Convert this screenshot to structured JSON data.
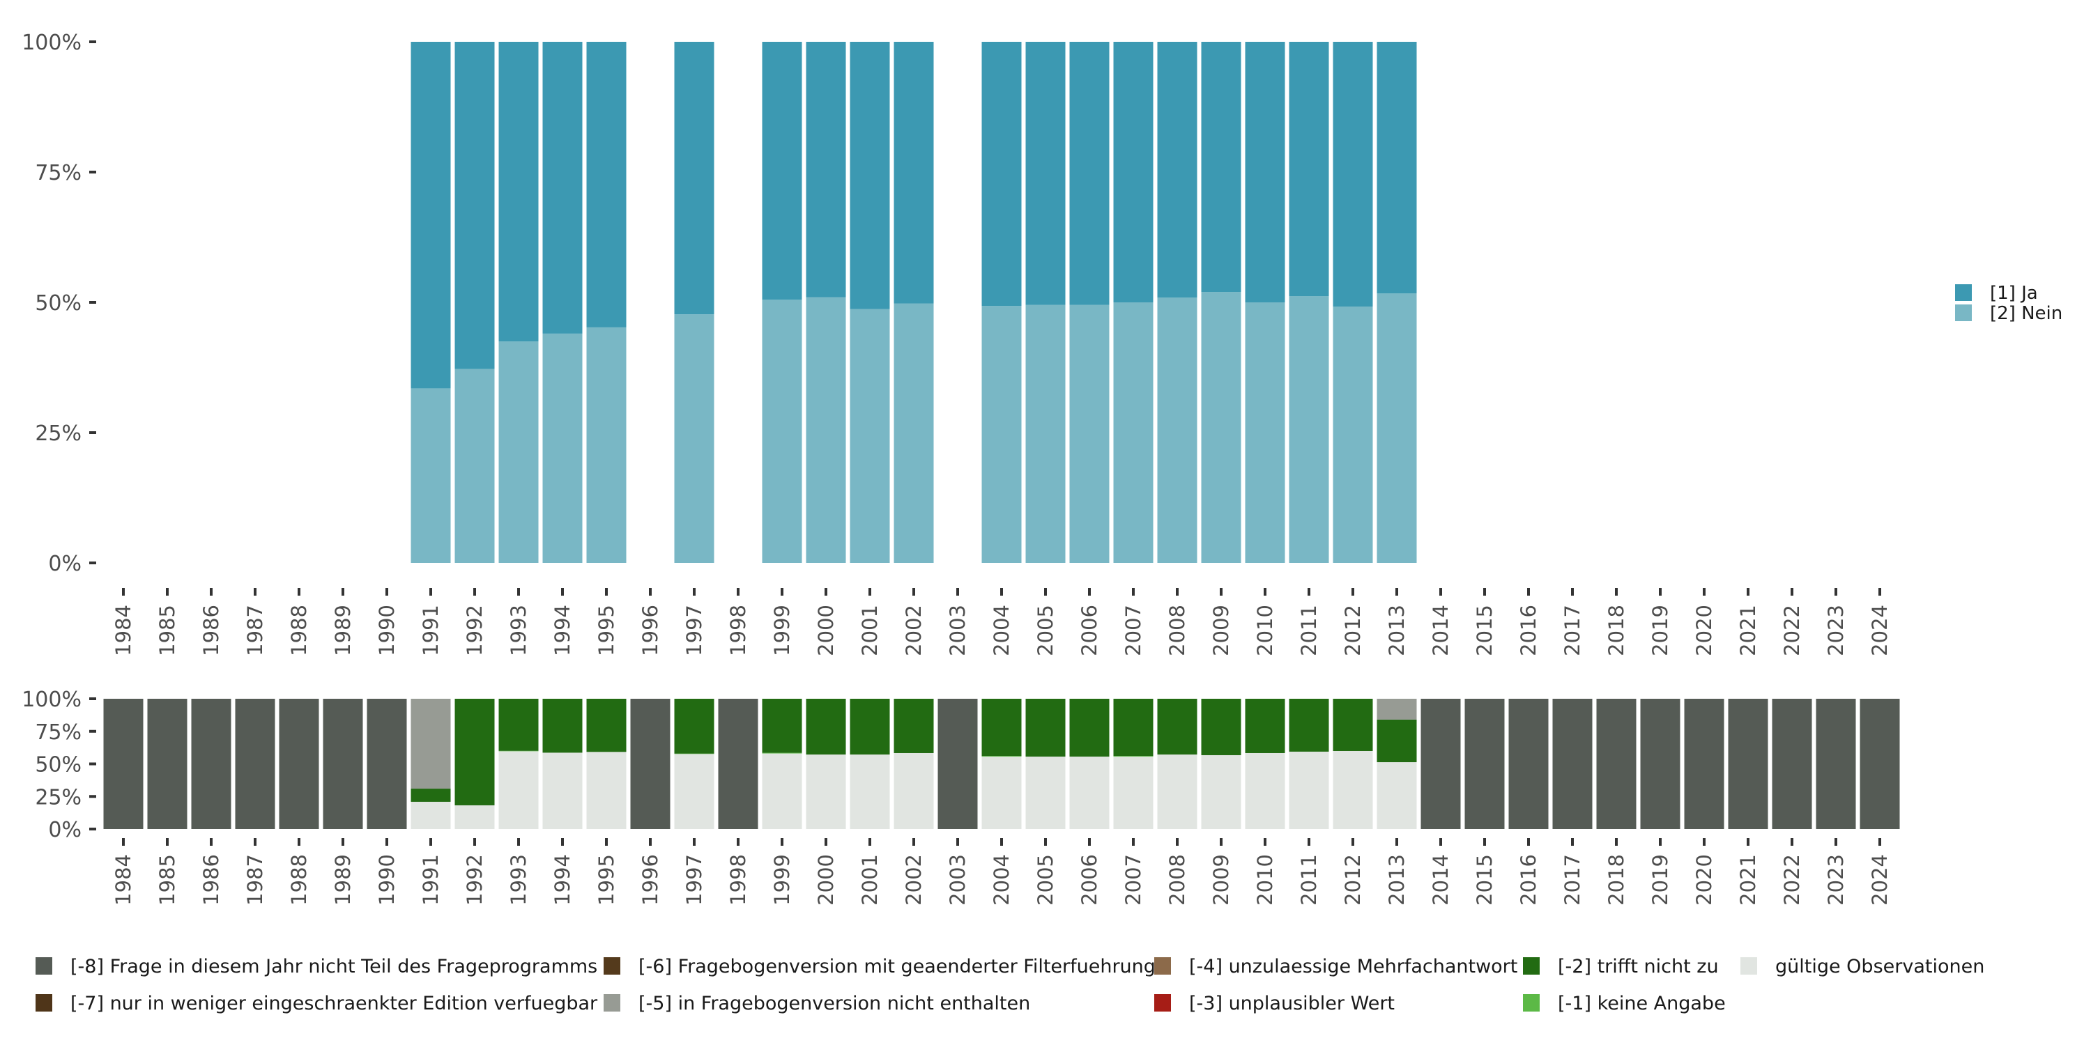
{
  "chart_data": [
    {
      "id": "top",
      "type": "bar",
      "stacked": true,
      "title": "",
      "xlabel": "",
      "ylabel": "",
      "ylim": [
        0,
        1
      ],
      "grid": false,
      "yticks": [
        "0%",
        "25%",
        "50%",
        "75%",
        "100%"
      ],
      "categories": [
        "1984",
        "1985",
        "1986",
        "1987",
        "1988",
        "1989",
        "1990",
        "1991",
        "1992",
        "1993",
        "1994",
        "1995",
        "1996",
        "1997",
        "1998",
        "1999",
        "2000",
        "2001",
        "2002",
        "2003",
        "2004",
        "2005",
        "2006",
        "2007",
        "2008",
        "2009",
        "2010",
        "2011",
        "2012",
        "2013",
        "2014",
        "2015",
        "2016",
        "2017",
        "2018",
        "2019",
        "2020",
        "2021",
        "2022",
        "2023",
        "2024"
      ],
      "legend_position": "right",
      "series": [
        {
          "name": "[2] Nein",
          "color": "#79b7c5",
          "values": [
            null,
            null,
            null,
            null,
            null,
            null,
            null,
            0.335,
            0.372,
            0.425,
            0.44,
            0.452,
            null,
            0.477,
            null,
            0.505,
            0.51,
            0.487,
            0.498,
            null,
            0.493,
            0.495,
            0.495,
            0.5,
            0.509,
            0.52,
            0.5,
            0.512,
            0.492,
            0.517,
            null,
            null,
            null,
            null,
            null,
            null,
            null,
            null,
            null,
            null,
            null
          ]
        },
        {
          "name": "[1] Ja",
          "color": "#3c99b2",
          "values": [
            null,
            null,
            null,
            null,
            null,
            null,
            null,
            0.665,
            0.628,
            0.575,
            0.56,
            0.548,
            null,
            0.523,
            null,
            0.495,
            0.49,
            0.513,
            0.502,
            null,
            0.507,
            0.505,
            0.505,
            0.5,
            0.491,
            0.48,
            0.5,
            0.488,
            0.508,
            0.483,
            null,
            null,
            null,
            null,
            null,
            null,
            null,
            null,
            null,
            null,
            null
          ]
        }
      ]
    },
    {
      "id": "bottom",
      "type": "bar",
      "stacked": true,
      "title": "",
      "xlabel": "",
      "ylabel": "",
      "ylim": [
        0,
        1
      ],
      "grid": false,
      "yticks": [
        "0%",
        "25%",
        "50%",
        "75%",
        "100%"
      ],
      "categories": [
        "1984",
        "1985",
        "1986",
        "1987",
        "1988",
        "1989",
        "1990",
        "1991",
        "1992",
        "1993",
        "1994",
        "1995",
        "1996",
        "1997",
        "1998",
        "1999",
        "2000",
        "2001",
        "2002",
        "2003",
        "2004",
        "2005",
        "2006",
        "2007",
        "2008",
        "2009",
        "2010",
        "2011",
        "2012",
        "2013",
        "2014",
        "2015",
        "2016",
        "2017",
        "2018",
        "2019",
        "2020",
        "2021",
        "2022",
        "2023",
        "2024"
      ],
      "legend_position": "bottom",
      "series": [
        {
          "name": "gültige Observationen",
          "color": "#e1e5e1",
          "values": [
            0,
            0,
            0,
            0,
            0,
            0,
            0,
            0.209,
            0.182,
            0.597,
            0.586,
            0.592,
            0,
            0.576,
            0,
            0.58,
            0.572,
            0.572,
            0.583,
            0,
            0.556,
            0.556,
            0.556,
            0.556,
            0.572,
            0.567,
            0.583,
            0.594,
            0.599,
            0.513,
            0,
            0,
            0,
            0,
            0,
            0,
            0,
            0,
            0,
            0,
            0
          ]
        },
        {
          "name": "[-1] keine Angabe",
          "color": "#5cb946",
          "values": [
            0,
            0,
            0,
            0,
            0,
            0,
            0,
            0,
            0,
            0.003,
            0,
            0,
            0,
            0.003,
            0,
            0.005,
            0,
            0,
            0,
            0,
            0.005,
            0,
            0,
            0.005,
            0,
            0,
            0,
            0,
            0,
            0,
            0,
            0,
            0,
            0,
            0,
            0,
            0,
            0,
            0,
            0,
            0
          ]
        },
        {
          "name": "[-2] trifft nicht zu",
          "color": "#226b12",
          "values": [
            0,
            0,
            0,
            0,
            0,
            0,
            0,
            0.101,
            0.818,
            0.4,
            0.414,
            0.408,
            0,
            0.421,
            0,
            0.415,
            0.428,
            0.428,
            0.417,
            0,
            0.439,
            0.444,
            0.444,
            0.439,
            0.428,
            0.433,
            0.417,
            0.406,
            0.401,
            0.327,
            0,
            0,
            0,
            0,
            0,
            0,
            0,
            0,
            0,
            0,
            0
          ]
        },
        {
          "name": "[-3] unplausibler Wert",
          "color": "#a61d16",
          "values": [
            0,
            0,
            0,
            0,
            0,
            0,
            0,
            0,
            0,
            0,
            0,
            0,
            0,
            0,
            0,
            0,
            0,
            0,
            0,
            0,
            0,
            0,
            0,
            0,
            0,
            0,
            0,
            0,
            0,
            0,
            0,
            0,
            0,
            0,
            0,
            0,
            0,
            0,
            0,
            0,
            0
          ]
        },
        {
          "name": "[-4] unzulaessige Mehrfachantwort",
          "color": "#8c6a4a",
          "values": [
            0,
            0,
            0,
            0,
            0,
            0,
            0,
            0,
            0,
            0,
            0,
            0,
            0,
            0,
            0,
            0,
            0,
            0,
            0,
            0,
            0,
            0,
            0,
            0,
            0,
            0,
            0,
            0,
            0,
            0,
            0,
            0,
            0,
            0,
            0,
            0,
            0,
            0,
            0,
            0,
            0
          ]
        },
        {
          "name": "[-5] in Fragebogenversion nicht enthalten",
          "color": "#979b94",
          "values": [
            0,
            0,
            0,
            0,
            0,
            0,
            0,
            0.69,
            0,
            0,
            0,
            0,
            0,
            0,
            0,
            0,
            0,
            0,
            0,
            0,
            0,
            0,
            0,
            0,
            0,
            0,
            0,
            0,
            0,
            0.16,
            0,
            0,
            0,
            0,
            0,
            0,
            0,
            0,
            0,
            0,
            0
          ]
        },
        {
          "name": "[-6] Fragebogenversion mit geaenderter Filterfuehrung",
          "color": "#543a1c",
          "values": [
            0,
            0,
            0,
            0,
            0,
            0,
            0,
            0,
            0,
            0,
            0,
            0,
            0,
            0,
            0,
            0,
            0,
            0,
            0,
            0,
            0,
            0,
            0,
            0,
            0,
            0,
            0,
            0,
            0,
            0,
            0,
            0,
            0,
            0,
            0,
            0,
            0,
            0,
            0,
            0,
            0
          ]
        },
        {
          "name": "[-7] nur in weniger eingeschraenkter Edition verfuegbar",
          "color": "#4f3519",
          "values": [
            0,
            0,
            0,
            0,
            0,
            0,
            0,
            0,
            0,
            0,
            0,
            0,
            0,
            0,
            0,
            0,
            0,
            0,
            0,
            0,
            0,
            0,
            0,
            0,
            0,
            0,
            0,
            0,
            0,
            0,
            0,
            0,
            0,
            0,
            0,
            0,
            0,
            0,
            0,
            0,
            0
          ]
        },
        {
          "name": "[-8] Frage in diesem Jahr nicht Teil des Frageprogramms",
          "color": "#555b55",
          "values": [
            1,
            1,
            1,
            1,
            1,
            1,
            1,
            0,
            0,
            0,
            0,
            0,
            1,
            0,
            1,
            0,
            0,
            0,
            0,
            1,
            0,
            0,
            0,
            0,
            0,
            0,
            0,
            0,
            0,
            0,
            1,
            1,
            1,
            1,
            1,
            1,
            1,
            1,
            1,
            1,
            1
          ]
        }
      ]
    }
  ],
  "legends": {
    "top": [
      {
        "label": "[1] Ja",
        "color": "#3c99b2"
      },
      {
        "label": "[2] Nein",
        "color": "#79b7c5"
      }
    ],
    "bottom_rows": [
      [
        {
          "label": "[-8] Frage in diesem Jahr nicht Teil des Frageprogramms",
          "color": "#555b55"
        },
        {
          "label": "[-6] Fragebogenversion mit geaenderter Filterfuehrung",
          "color": "#543a1c"
        },
        {
          "label": "[-4] unzulaessige Mehrfachantwort",
          "color": "#8c6a4a"
        },
        {
          "label": "[-2] trifft nicht zu",
          "color": "#226b12"
        },
        {
          "label": "gültige Observationen",
          "color": "#e1e5e1"
        }
      ],
      [
        {
          "label": "[-7] nur in weniger eingeschraenkter Edition verfuegbar",
          "color": "#4f3519"
        },
        {
          "label": "[-5] in Fragebogenversion nicht enthalten",
          "color": "#979b94"
        },
        {
          "label": "[-3] unplausibler Wert",
          "color": "#a61d16"
        },
        {
          "label": "[-1] keine Angabe",
          "color": "#5cb946"
        }
      ]
    ]
  }
}
